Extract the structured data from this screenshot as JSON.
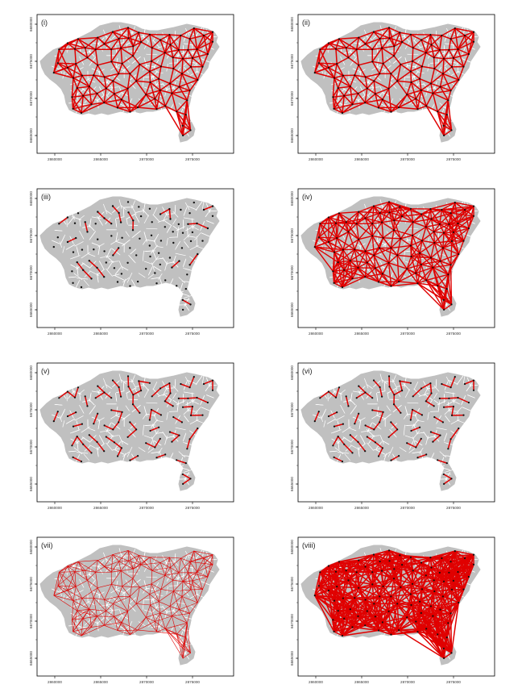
{
  "panels": [
    {
      "label": "(i)",
      "style": "network-medium"
    },
    {
      "label": "(ii)",
      "style": "network-medium"
    },
    {
      "label": "(iii)",
      "style": "sparse-points"
    },
    {
      "label": "(iv)",
      "style": "network-dense"
    },
    {
      "label": "(v)",
      "style": "sparse"
    },
    {
      "label": "(vi)",
      "style": "sparse"
    },
    {
      "label": "(vii)",
      "style": "thin-full"
    },
    {
      "label": "(viii)",
      "style": "network-very-dense"
    }
  ],
  "x_ticks": [
    "2860000",
    "2865000",
    "2870000",
    "2875000"
  ],
  "y_ticks": [
    "6680000",
    "6675000",
    "6670000",
    "6665000"
  ],
  "colors": {
    "map_fill": "#c0c0c0",
    "map_edges": "#ffffff",
    "network": "#e00000",
    "points": "#111111",
    "frame": "#000000"
  }
}
